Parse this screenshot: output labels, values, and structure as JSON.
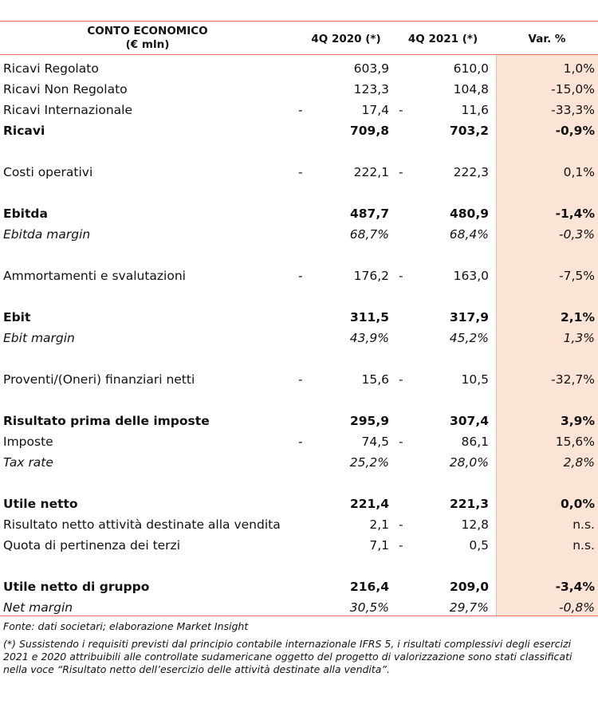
{
  "header": {
    "title_line1": "CONTO ECONOMICO",
    "title_line2": "(€ mln)",
    "col1": "4Q 2020 (*)",
    "col2": "4Q 2021 (*)",
    "col3": "Var. %"
  },
  "rows": [
    {
      "label": "Ricavi Regolato",
      "m1": "",
      "v1": "603,9",
      "m2": "",
      "v2": "610,0",
      "v3": "1,0%"
    },
    {
      "label": "Ricavi Non Regolato",
      "m1": "",
      "v1": "123,3",
      "m2": "",
      "v2": "104,8",
      "v3": "-15,0%"
    },
    {
      "label": "Ricavi Internazionale",
      "m1": "-",
      "v1": "17,4",
      "m2": "-",
      "v2": "11,6",
      "v3": "-33,3%"
    },
    {
      "label": "Ricavi",
      "m1": "",
      "v1": "709,8",
      "m2": "",
      "v2": "703,2",
      "v3": "-0,9%"
    },
    {
      "label": "Costi operativi",
      "m1": "-",
      "v1": "222,1",
      "m2": "-",
      "v2": "222,3",
      "v3": "0,1%"
    },
    {
      "label": "Ebitda",
      "m1": "",
      "v1": "487,7",
      "m2": "",
      "v2": "480,9",
      "v3": "-1,4%"
    },
    {
      "label": "Ebitda margin",
      "m1": "",
      "v1": "68,7%",
      "m2": "",
      "v2": "68,4%",
      "v3": "-0,3%"
    },
    {
      "label": "Ammortamenti e svalutazioni",
      "m1": "-",
      "v1": "176,2",
      "m2": "-",
      "v2": "163,0",
      "v3": "-7,5%"
    },
    {
      "label": "Ebit",
      "m1": "",
      "v1": "311,5",
      "m2": "",
      "v2": "317,9",
      "v3": "2,1%"
    },
    {
      "label": "Ebit margin",
      "m1": "",
      "v1": "43,9%",
      "m2": "",
      "v2": "45,2%",
      "v3": "1,3%"
    },
    {
      "label": "Proventi/(Oneri) finanziari netti",
      "m1": "-",
      "v1": "15,6",
      "m2": "-",
      "v2": "10,5",
      "v3": "-32,7%"
    },
    {
      "label": "Risultato prima delle imposte",
      "m1": "",
      "v1": "295,9",
      "m2": "",
      "v2": "307,4",
      "v3": "3,9%"
    },
    {
      "label": "Imposte",
      "m1": "-",
      "v1": "74,5",
      "m2": "-",
      "v2": "86,1",
      "v3": "15,6%"
    },
    {
      "label": "Tax rate",
      "m1": "",
      "v1": "25,2%",
      "m2": "",
      "v2": "28,0%",
      "v3": "2,8%"
    },
    {
      "label": "Utile netto",
      "m1": "",
      "v1": "221,4",
      "m2": "",
      "v2": "221,3",
      "v3": "0,0%"
    },
    {
      "label": "Risultato netto attività destinate alla vendita",
      "m1": "",
      "v1": "2,1",
      "m2": "-",
      "v2": "12,8",
      "v3": "n.s."
    },
    {
      "label": "Quota di pertinenza dei terzi",
      "m1": "",
      "v1": "7,1",
      "m2": "-",
      "v2": "0,5",
      "v3": "n.s."
    },
    {
      "label": "Utile netto di gruppo",
      "m1": "",
      "v1": "216,4",
      "m2": "",
      "v2": "209,0",
      "v3": "-3,4%"
    },
    {
      "label": "Net margin",
      "m1": "",
      "v1": "30,5%",
      "m2": "",
      "v2": "29,7%",
      "v3": "-0,8%"
    }
  ],
  "notes": {
    "source": "Fonte: dati societari; elaborazione Market Insight",
    "disclaimer": "(*)  Sussistendo i requisiti previsti dal principio contabile internazionale IFRS 5, i risultati complessivi degli esercizi 2021 e 2020 attribuibili alle controllate sudamericane oggetto del progetto di valorizzazione sono stati classificati nella voce “Risultato netto dell’esercizio delle attività destinate alla vendita”."
  }
}
